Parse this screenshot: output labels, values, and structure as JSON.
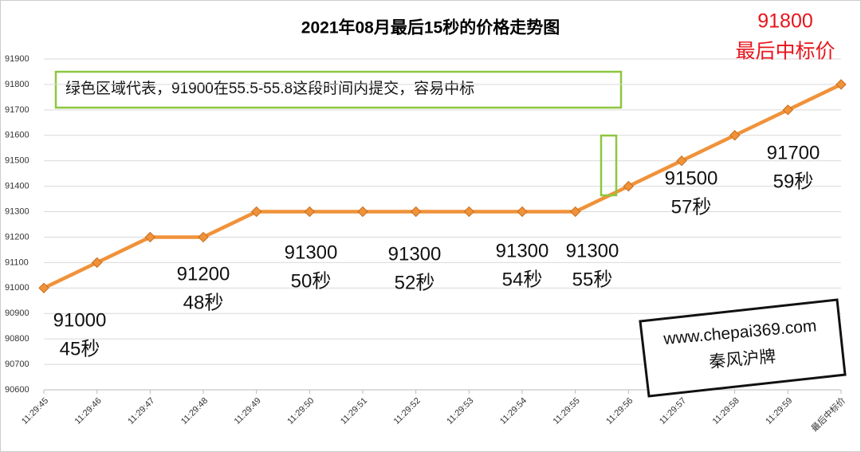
{
  "chart_data": {
    "type": "line",
    "title": "2021年08月最后15秒的价格走势图",
    "categories": [
      "11:29:45",
      "11:29:46",
      "11:29:47",
      "11:29:48",
      "11:29:49",
      "11:29:50",
      "11:29:51",
      "11:29:52",
      "11:29:53",
      "11:29:54",
      "11:29:55",
      "11:29:56",
      "11:29:57",
      "11:29:58",
      "11:29:59",
      "最后中标价"
    ],
    "series": [
      {
        "name": "价格",
        "color": "#f0923a",
        "values": [
          91000,
          91100,
          91200,
          91200,
          91300,
          91300,
          91300,
          91300,
          91300,
          91300,
          91300,
          91400,
          91500,
          91600,
          91700,
          91800
        ]
      }
    ],
    "ylim": [
      90600,
      91900
    ],
    "yticks": [
      90600,
      90700,
      90800,
      90900,
      91000,
      91100,
      91200,
      91300,
      91400,
      91500,
      91600,
      91700,
      91800,
      91900
    ],
    "grid": true,
    "annotations": [
      [
        "91000",
        "45秒"
      ],
      [
        "91200",
        "48秒"
      ],
      [
        "91300",
        "50秒"
      ],
      [
        "91300",
        "52秒"
      ],
      [
        "91300",
        "54秒"
      ],
      [
        "91300",
        "55秒"
      ],
      [
        "91500",
        "57秒"
      ],
      [
        "91700",
        "59秒"
      ]
    ],
    "final_label": [
      "91800",
      "最后中标价"
    ],
    "note": "绿色区域代表，91900在55.5-55.8这段时间内提交，容易中标",
    "watermark": [
      "www.chepai369.com",
      "秦风沪牌"
    ]
  }
}
